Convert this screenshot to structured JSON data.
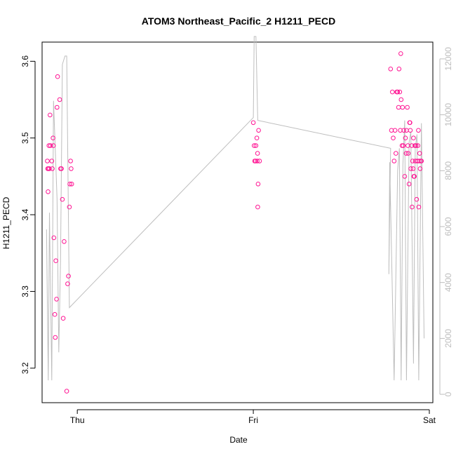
{
  "chart_data": {
    "type": "scatter",
    "title": "ATOM3 Northeast_Pacific_2 H1211_PECD",
    "xlabel": "Date",
    "ylabel": "H1211_PECD",
    "x_ticks": [
      "Thu",
      "Fri",
      "Sat"
    ],
    "xlim_days": [
      -0.2,
      2.02
    ],
    "ylim": [
      3.155,
      3.625
    ],
    "y_ticks": [
      "3.2",
      "3.3",
      "3.4",
      "3.5",
      "3.6"
    ],
    "y2lim": [
      -300,
      12600
    ],
    "y2_ticks": [
      "0",
      "2000",
      "4000",
      "6000",
      "8000",
      "10000",
      "12000"
    ],
    "grid": false,
    "legend": "none",
    "colors": {
      "points": "#ff1493",
      "line": "#bebebe",
      "right_axis": "#bdbdbd"
    },
    "series": [
      {
        "kind": "points",
        "axis": "left",
        "points": [
          [
            -0.17,
            3.47
          ],
          [
            -0.168,
            3.46
          ],
          [
            -0.166,
            3.43
          ],
          [
            -0.164,
            3.46
          ],
          [
            -0.161,
            3.49
          ],
          [
            -0.158,
            3.46
          ],
          [
            -0.155,
            3.53
          ],
          [
            -0.152,
            3.49
          ],
          [
            -0.145,
            3.47
          ],
          [
            -0.142,
            3.46
          ],
          [
            -0.138,
            3.5
          ],
          [
            -0.136,
            3.49
          ],
          [
            -0.133,
            3.37
          ],
          [
            -0.128,
            3.27
          ],
          [
            -0.125,
            3.24
          ],
          [
            -0.122,
            3.34
          ],
          [
            -0.118,
            3.29
          ],
          [
            -0.115,
            3.54
          ],
          [
            -0.112,
            3.58
          ],
          [
            -0.1,
            3.55
          ],
          [
            -0.095,
            3.46
          ],
          [
            -0.09,
            3.46
          ],
          [
            -0.085,
            3.42
          ],
          [
            -0.08,
            3.265
          ],
          [
            -0.075,
            3.365
          ],
          [
            -0.06,
            3.17
          ],
          [
            -0.055,
            3.31
          ],
          [
            -0.05,
            3.32
          ],
          [
            -0.045,
            3.41
          ],
          [
            -0.042,
            3.44
          ],
          [
            -0.038,
            3.47
          ],
          [
            -0.035,
            3.46
          ],
          [
            -0.032,
            3.44
          ],
          [
            1.0,
            3.52
          ],
          [
            1.005,
            3.49
          ],
          [
            1.008,
            3.47
          ],
          [
            1.012,
            3.47
          ],
          [
            1.015,
            3.49
          ],
          [
            1.02,
            3.5
          ],
          [
            1.022,
            3.47
          ],
          [
            1.024,
            3.48
          ],
          [
            1.025,
            3.41
          ],
          [
            1.027,
            3.44
          ],
          [
            1.03,
            3.51
          ],
          [
            1.035,
            3.47
          ],
          [
            1.78,
            3.59
          ],
          [
            1.785,
            3.51
          ],
          [
            1.79,
            3.56
          ],
          [
            1.795,
            3.5
          ],
          [
            1.8,
            3.47
          ],
          [
            1.805,
            3.51
          ],
          [
            1.81,
            3.48
          ],
          [
            1.815,
            3.56
          ],
          [
            1.82,
            3.56
          ],
          [
            1.825,
            3.54
          ],
          [
            1.828,
            3.59
          ],
          [
            1.832,
            3.56
          ],
          [
            1.835,
            3.51
          ],
          [
            1.838,
            3.61
          ],
          [
            1.84,
            3.55
          ],
          [
            1.845,
            3.49
          ],
          [
            1.848,
            3.54
          ],
          [
            1.852,
            3.49
          ],
          [
            1.855,
            3.51
          ],
          [
            1.86,
            3.45
          ],
          [
            1.864,
            3.5
          ],
          [
            1.868,
            3.48
          ],
          [
            1.87,
            3.51
          ],
          [
            1.875,
            3.54
          ],
          [
            1.878,
            3.49
          ],
          [
            1.88,
            3.48
          ],
          [
            1.885,
            3.44
          ],
          [
            1.888,
            3.52
          ],
          [
            1.89,
            3.52
          ],
          [
            1.892,
            3.51
          ],
          [
            1.895,
            3.46
          ],
          [
            1.9,
            3.49
          ],
          [
            1.902,
            3.41
          ],
          [
            1.905,
            3.47
          ],
          [
            1.908,
            3.46
          ],
          [
            1.91,
            3.5
          ],
          [
            1.912,
            3.45
          ],
          [
            1.915,
            3.45
          ],
          [
            1.918,
            3.49
          ],
          [
            1.92,
            3.47
          ],
          [
            1.925,
            3.49
          ],
          [
            1.928,
            3.42
          ],
          [
            1.932,
            3.47
          ],
          [
            1.935,
            3.49
          ],
          [
            1.938,
            3.51
          ],
          [
            1.94,
            3.41
          ],
          [
            1.942,
            3.47
          ],
          [
            1.945,
            3.48
          ],
          [
            1.948,
            3.46
          ],
          [
            1.952,
            3.47
          ],
          [
            1.955,
            3.47
          ]
        ]
      },
      {
        "kind": "line",
        "axis": "right",
        "points": [
          [
            -0.175,
            5900
          ],
          [
            -0.165,
            500
          ],
          [
            -0.158,
            6500
          ],
          [
            -0.145,
            500
          ],
          [
            -0.135,
            10500
          ],
          [
            -0.115,
            7000
          ],
          [
            -0.105,
            1500
          ],
          [
            -0.095,
            4800
          ],
          [
            -0.085,
            11800
          ],
          [
            -0.07,
            12100
          ],
          [
            -0.06,
            12100
          ],
          [
            -0.045,
            3100
          ],
          [
            1.0,
            9900
          ],
          [
            1.005,
            12800
          ],
          [
            1.015,
            12800
          ],
          [
            1.025,
            9800
          ],
          [
            1.78,
            8800
          ],
          [
            1.77,
            4300
          ],
          [
            1.775,
            8300
          ],
          [
            1.8,
            500
          ],
          [
            1.82,
            8000
          ],
          [
            1.83,
            8800
          ],
          [
            1.84,
            500
          ],
          [
            1.85,
            8200
          ],
          [
            1.86,
            9800
          ],
          [
            1.87,
            500
          ],
          [
            1.885,
            9000
          ],
          [
            1.895,
            9400
          ],
          [
            1.91,
            1100
          ],
          [
            1.92,
            8800
          ],
          [
            1.93,
            9300
          ],
          [
            1.94,
            500
          ],
          [
            1.955,
            9700
          ],
          [
            1.97,
            2000
          ]
        ]
      }
    ]
  }
}
